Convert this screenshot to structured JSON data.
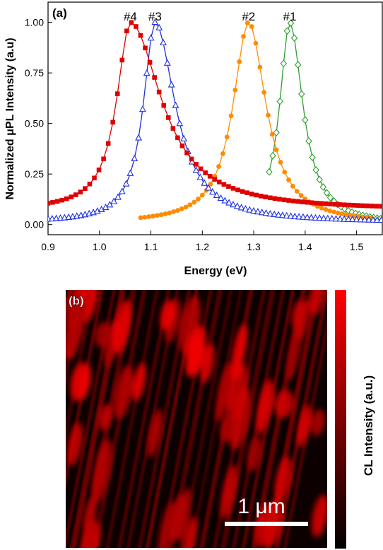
{
  "chart_data": [
    {
      "type": "line",
      "panel_label": "(a)",
      "xlabel": "Energy (eV)",
      "ylabel": "Normalized μPL Intensity (a.u)",
      "xlim": [
        0.9,
        1.55
      ],
      "ylim": [
        -0.05,
        1.1
      ],
      "x_ticks": [
        "0.9",
        "1.0",
        "1.1",
        "1.2",
        "1.3",
        "1.4",
        "1.5"
      ],
      "y_ticks": [
        "0.00",
        "0.25",
        "0.50",
        "0.75",
        "1.00"
      ],
      "series": [
        {
          "name": "#1",
          "color": "#2e9e2e",
          "marker": "diamond-open",
          "peak_x": 1.37,
          "left_width": 0.026,
          "right_width": 0.034,
          "baseline": 0.0,
          "x_start": 1.33,
          "x_end": 1.55,
          "step": 0.007
        },
        {
          "name": "#2",
          "color": "#ff8c00",
          "marker": "circle-filled",
          "peak_x": 1.29,
          "left_width": 0.04,
          "right_width": 0.045,
          "baseline": 0.005,
          "x_start": 1.08,
          "x_end": 1.53,
          "step": 0.008
        },
        {
          "name": "#3",
          "color": "#1f2fe0",
          "marker": "triangle-open",
          "peak_x": 1.108,
          "left_width": 0.03,
          "right_width": 0.052,
          "baseline": 0.01,
          "x_start": 0.9,
          "x_end": 1.55,
          "step": 0.008
        },
        {
          "name": "#4",
          "color": "#e00000",
          "marker": "square-filled",
          "peak_x": 1.06,
          "left_width": 0.035,
          "right_width": 0.08,
          "baseline": 0.07,
          "x_start": 0.9,
          "x_end": 1.55,
          "step": 0.009
        }
      ]
    },
    {
      "type": "heatmap",
      "panel_label": "(b)",
      "colorbar_label": "CL Intensity (a.u.)",
      "scale_bar_label": "1 μm",
      "colormap": [
        "#000000",
        "#ff0000"
      ]
    }
  ]
}
